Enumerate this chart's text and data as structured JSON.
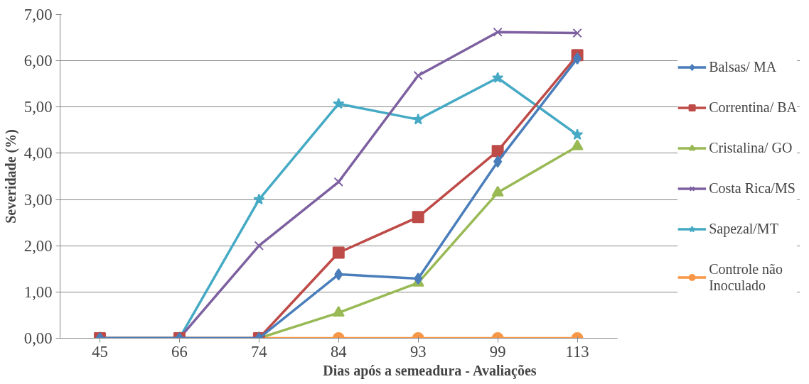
{
  "chart_data": {
    "type": "line",
    "xlabel": "Dias após a semeadura - Avaliações",
    "ylabel": "Severidade (%)",
    "categories": [
      "45",
      "66",
      "74",
      "84",
      "93",
      "99",
      "113"
    ],
    "ylim": [
      0,
      7
    ],
    "yticks": [
      {
        "value": 0,
        "label": "0,00"
      },
      {
        "value": 1,
        "label": "1,00"
      },
      {
        "value": 2,
        "label": "2,00"
      },
      {
        "value": 3,
        "label": "3,00"
      },
      {
        "value": 4,
        "label": "4,00"
      },
      {
        "value": 5,
        "label": "5,00"
      },
      {
        "value": 6,
        "label": "6,00"
      },
      {
        "value": 7,
        "label": "7,00"
      }
    ],
    "grid": "y",
    "legend": "right",
    "series": [
      {
        "name": "Balsas/ MA",
        "color": "#4a7ebb",
        "marker": "diamond",
        "values": [
          0,
          0,
          0,
          1.38,
          1.29,
          3.82,
          6.05
        ]
      },
      {
        "name": "Correntina/ BA",
        "color": "#be4b48",
        "marker": "square",
        "values": [
          0,
          0,
          0,
          1.85,
          2.62,
          4.05,
          6.12
        ]
      },
      {
        "name": "Cristalina/ GO",
        "color": "#98b954",
        "marker": "triangle",
        "values": [
          0,
          0,
          0,
          0.55,
          1.2,
          3.15,
          4.15
        ]
      },
      {
        "name": "Costa Rica/MS",
        "color": "#7d60a0",
        "marker": "cross",
        "values": [
          0,
          0,
          2.0,
          3.38,
          5.68,
          6.62,
          6.6
        ]
      },
      {
        "name": "Sapezal/MT",
        "color": "#46aac5",
        "marker": "star",
        "values": [
          0,
          0,
          3.0,
          5.07,
          4.73,
          5.63,
          4.4
        ]
      },
      {
        "name": "Controle não Inoculado",
        "color": "#f79646",
        "marker": "circle",
        "values": [
          0,
          0,
          0,
          0,
          0,
          0,
          0
        ]
      }
    ]
  }
}
